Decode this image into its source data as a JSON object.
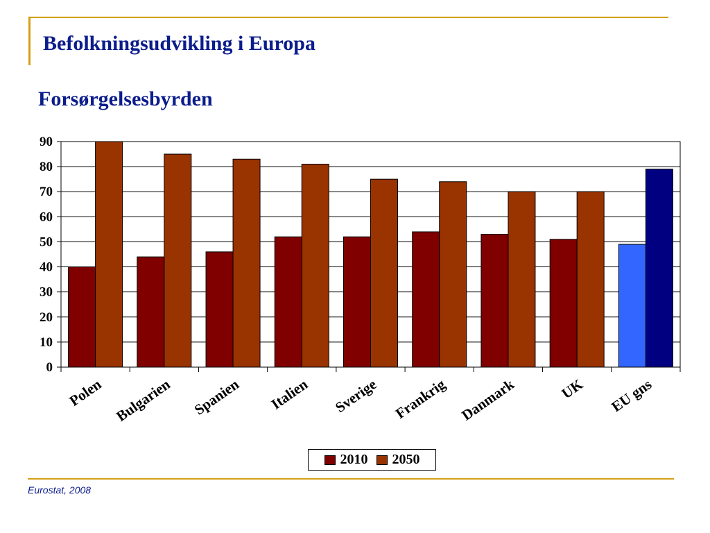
{
  "slide": {
    "title": "Befolkningsudvikling i Europa",
    "source": "Eurostat, 2008",
    "accent_color": "#d4a017",
    "title_color": "#0b1c8c"
  },
  "chart_data": {
    "type": "bar",
    "title": "Forsørgelsesbyrden",
    "xlabel": "",
    "ylabel": "",
    "ylim": [
      0,
      90
    ],
    "yticks": [
      0,
      10,
      20,
      30,
      40,
      50,
      60,
      70,
      80,
      90
    ],
    "grid": true,
    "legend_position": "bottom-center",
    "categories": [
      "Polen",
      "Bulgarien",
      "Spanien",
      "Italien",
      "Sverige",
      "Frankrig",
      "Danmark",
      "UK",
      "EU gns"
    ],
    "series": [
      {
        "name": "2010",
        "color": "#800000",
        "values": [
          40,
          44,
          46,
          52,
          52,
          54,
          53,
          51,
          49
        ]
      },
      {
        "name": "2050",
        "color": "#993300",
        "values": [
          90,
          85,
          83,
          81,
          75,
          74,
          70,
          70,
          79
        ]
      }
    ],
    "highlight": {
      "category": "EU gns",
      "colors": [
        "#3366ff",
        "#000080"
      ]
    }
  }
}
